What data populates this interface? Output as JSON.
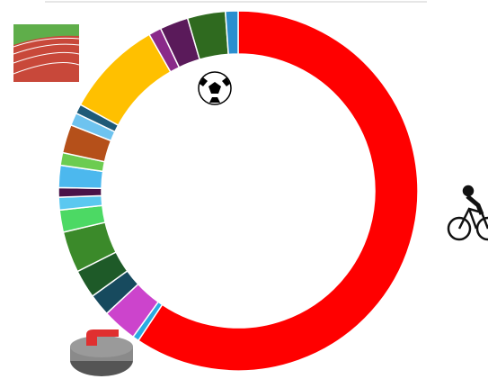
{
  "chart_data": {
    "type": "donut",
    "values": [
      209,
      2,
      11,
      7,
      9,
      13,
      7,
      4,
      3,
      7,
      4,
      9,
      4,
      3,
      31,
      4,
      9,
      12,
      4
    ],
    "colors": [
      "#ff0000",
      "#29abe2",
      "#cc44cc",
      "#174a5e",
      "#1e5a28",
      "#3b8a2a",
      "#4cd964",
      "#5bc8f0",
      "#4a1248",
      "#4cb8ee",
      "#6ccc50",
      "#b5501a",
      "#6ec3ef",
      "#1f5a78",
      "#ffc000",
      "#8a2a8a",
      "#5a1a5a",
      "#2f6a1f",
      "#2b8fcf"
    ]
  }
}
